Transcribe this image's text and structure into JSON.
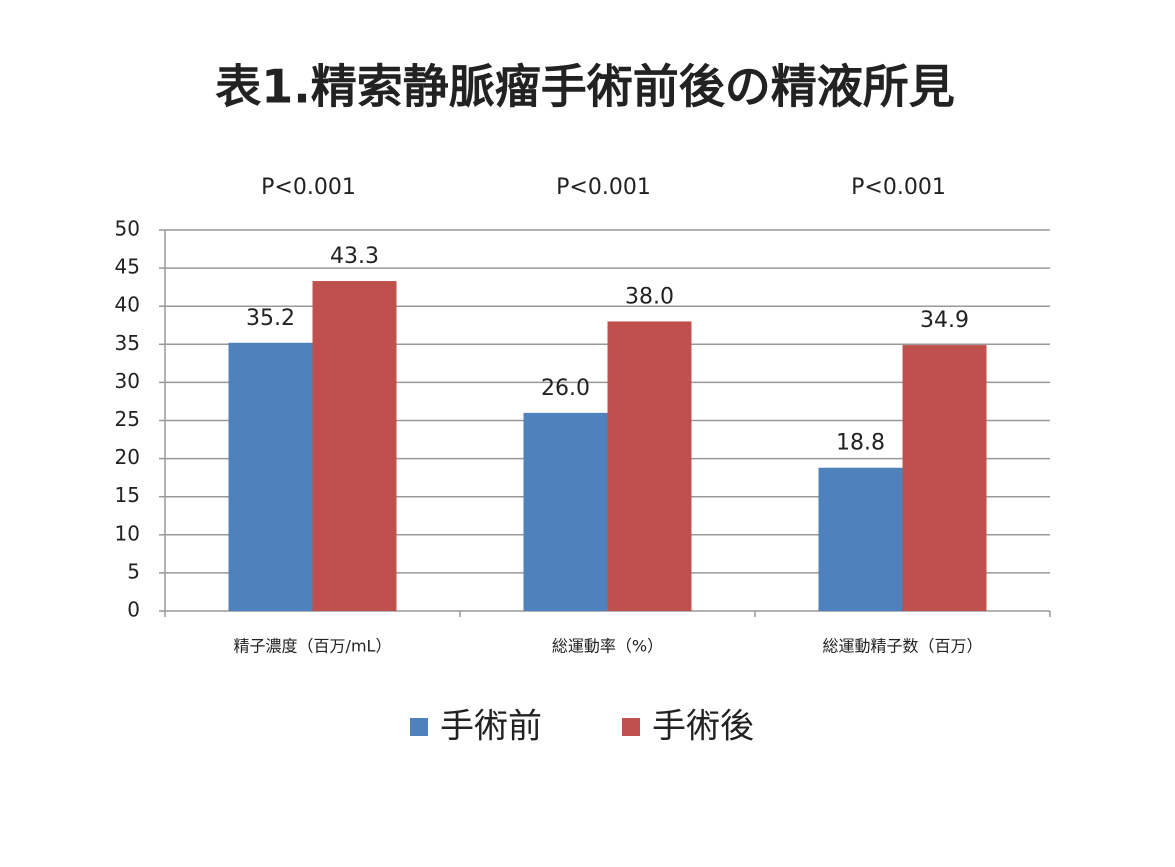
{
  "chart_data": {
    "type": "bar",
    "title": "表1.精索静脈瘤手術前後の精液所見",
    "categories": [
      "精子濃度（百万/mL）",
      "総運動率（%）",
      "総運動精子数（百万）"
    ],
    "annotations": [
      "P<0.001",
      "P<0.001",
      "P<0.001"
    ],
    "series": [
      {
        "name": "手術前",
        "color": "#4f81bd",
        "values": [
          35.2,
          26.0,
          18.8
        ],
        "value_labels": [
          "35.2",
          "26.0",
          "18.8"
        ]
      },
      {
        "name": "手術後",
        "color": "#c0504d",
        "values": [
          43.3,
          38.0,
          34.9
        ],
        "value_labels": [
          "43.3",
          "38.0",
          "34.9"
        ]
      }
    ],
    "ylim": [
      0,
      50
    ],
    "yticks": [
      0,
      5,
      10,
      15,
      20,
      25,
      30,
      35,
      40,
      45,
      50
    ],
    "grid": true,
    "legend": "bottom"
  }
}
